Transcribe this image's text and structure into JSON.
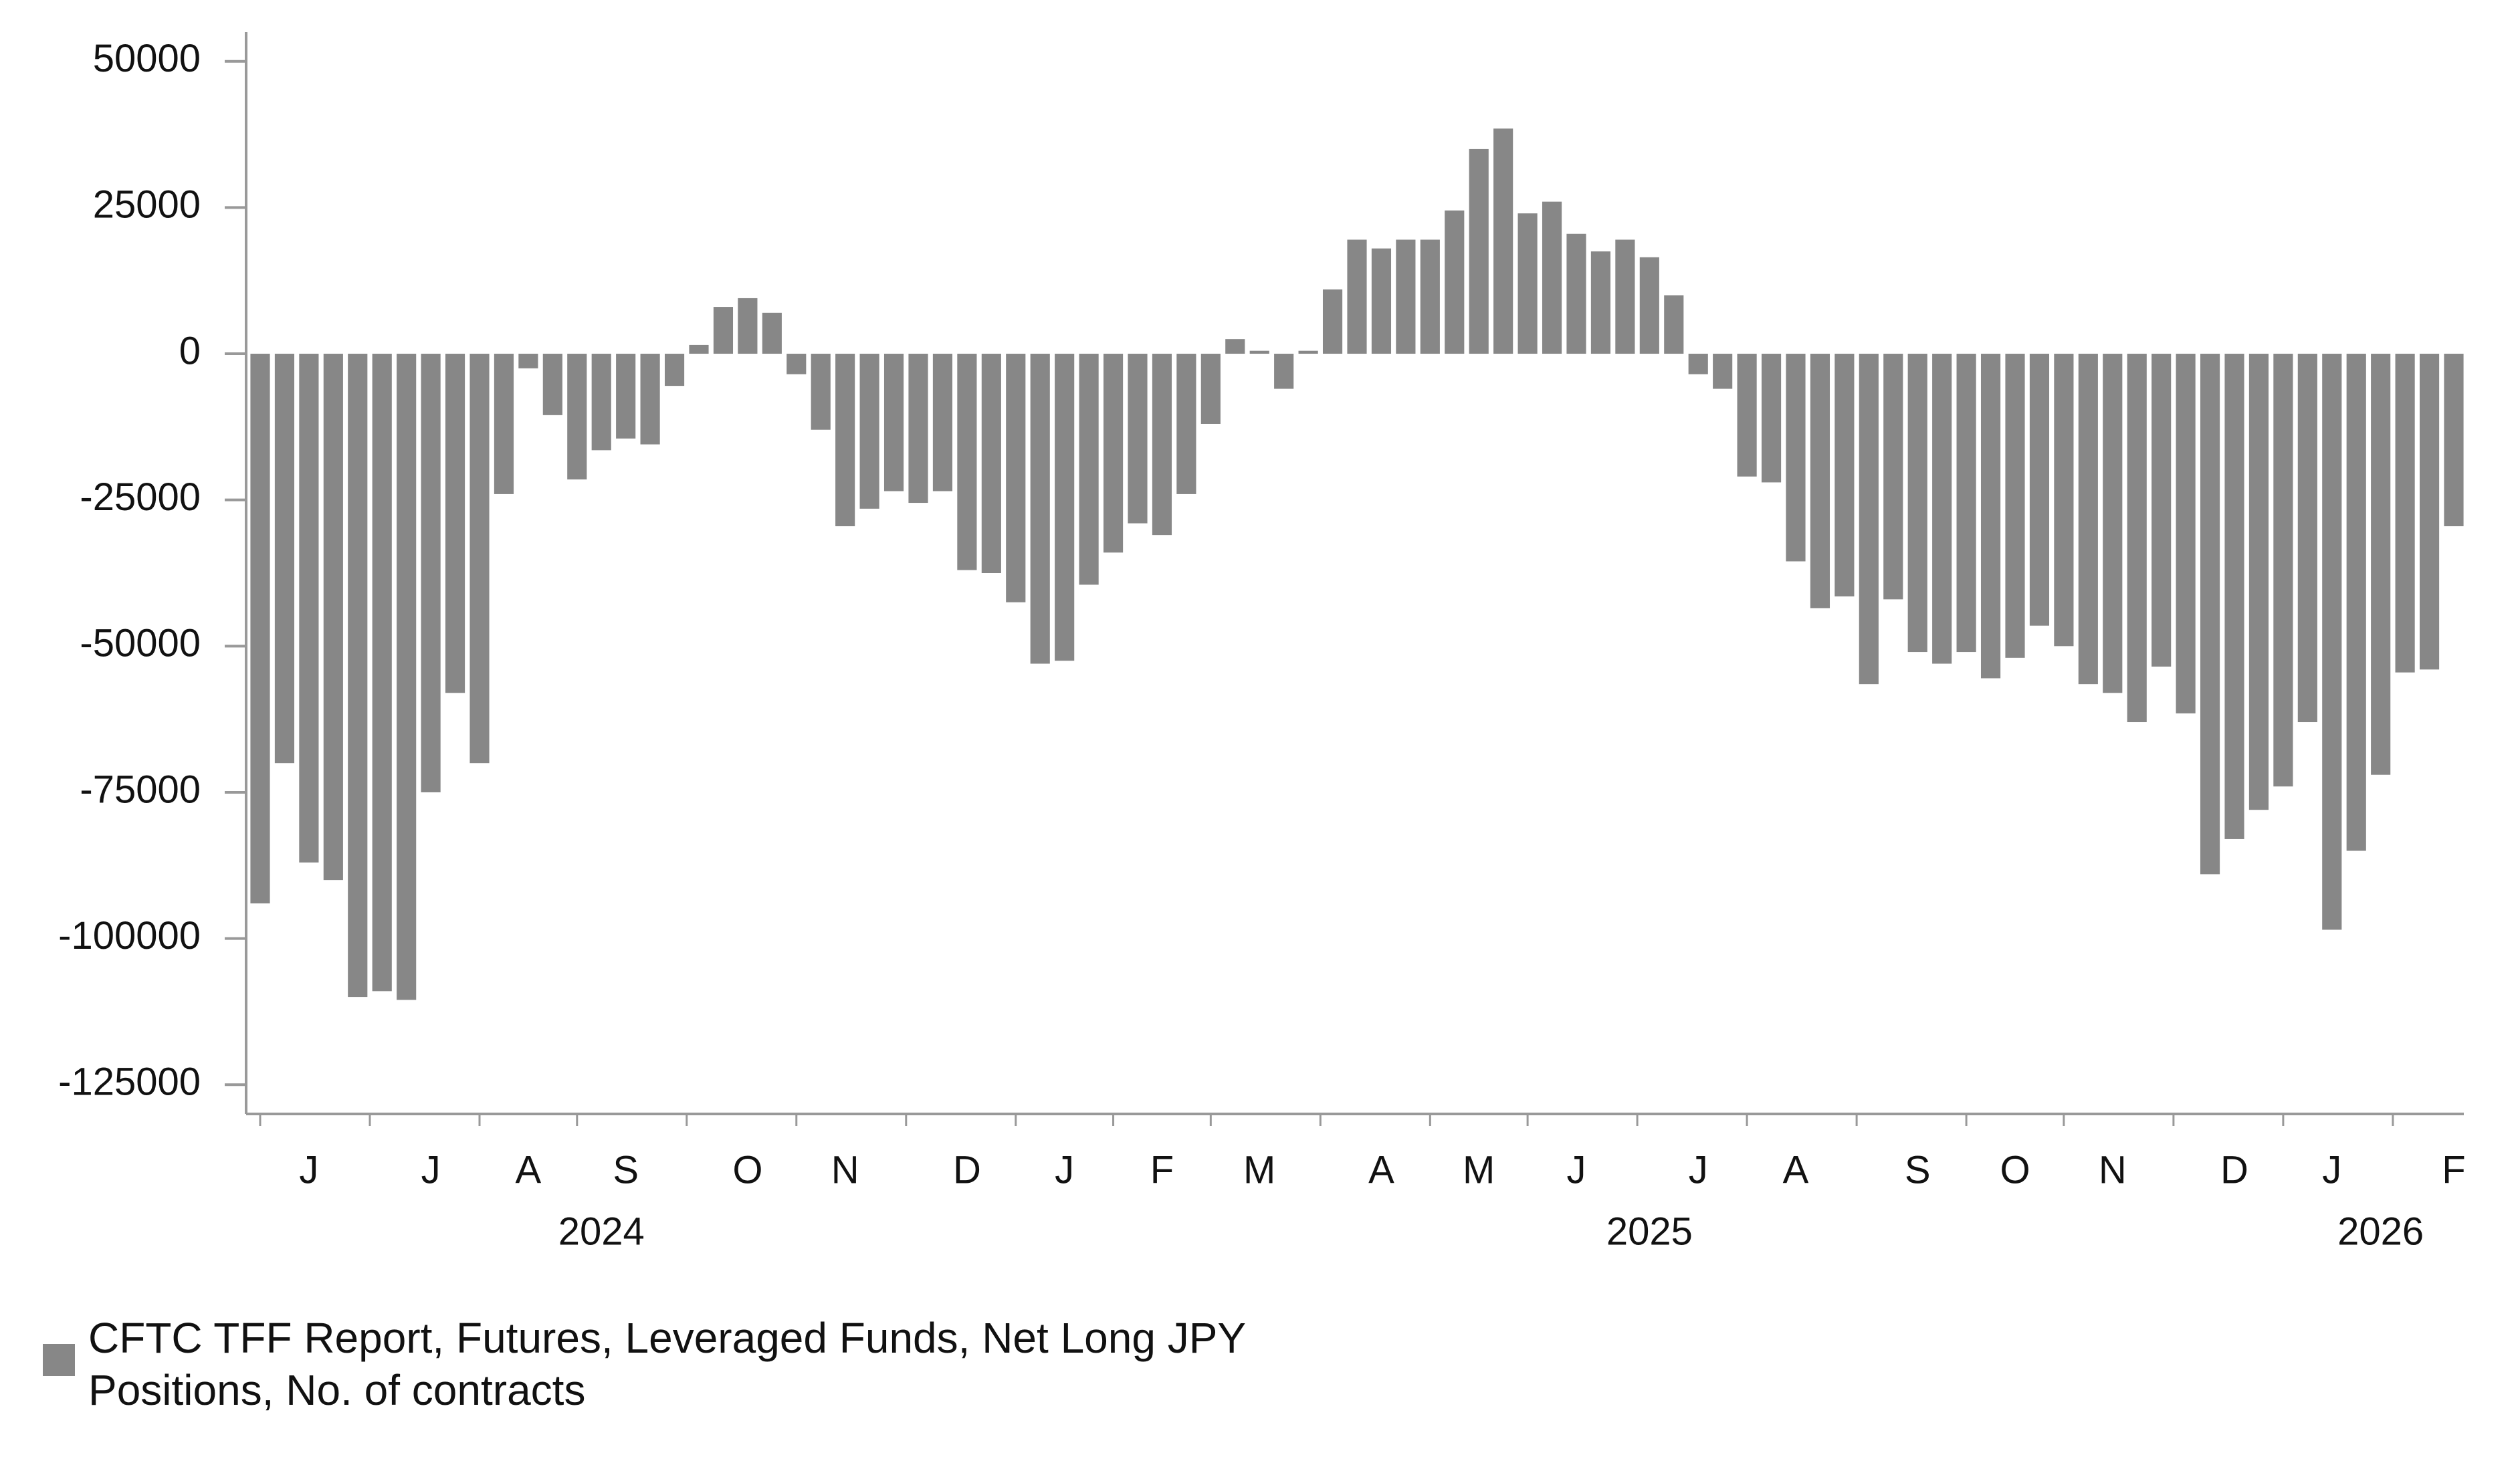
{
  "chart_data": {
    "type": "bar",
    "color": "#878787",
    "categories": [
      null,
      null,
      "J",
      null,
      null,
      null,
      null,
      "J",
      null,
      null,
      null,
      "A",
      null,
      null,
      null,
      "S",
      null,
      null,
      null,
      null,
      "O",
      null,
      null,
      null,
      "N",
      null,
      null,
      null,
      null,
      "D",
      null,
      null,
      null,
      "J",
      null,
      null,
      null,
      "F",
      null,
      null,
      null,
      "M",
      null,
      null,
      null,
      null,
      "A",
      null,
      null,
      null,
      "M",
      null,
      null,
      null,
      "J",
      null,
      null,
      null,
      null,
      "J",
      null,
      null,
      null,
      "A",
      null,
      null,
      null,
      null,
      "S",
      null,
      null,
      null,
      "O",
      null,
      null,
      null,
      "N",
      null,
      null,
      null,
      null,
      "D",
      null,
      null,
      null,
      "J",
      null,
      null,
      null,
      null,
      "F"
    ],
    "year_categories": [
      null,
      null,
      null,
      null,
      null,
      null,
      null,
      null,
      null,
      null,
      null,
      null,
      null,
      null,
      "2024",
      null,
      null,
      null,
      null,
      null,
      null,
      null,
      null,
      null,
      null,
      null,
      null,
      null,
      null,
      null,
      null,
      null,
      null,
      null,
      null,
      null,
      null,
      null,
      null,
      null,
      null,
      null,
      null,
      null,
      null,
      null,
      null,
      null,
      null,
      null,
      null,
      null,
      null,
      null,
      null,
      null,
      null,
      "2025",
      null,
      null,
      null,
      null,
      null,
      null,
      null,
      null,
      null,
      null,
      null,
      null,
      null,
      null,
      null,
      null,
      null,
      null,
      null,
      null,
      null,
      null,
      null,
      null,
      null,
      null,
      null,
      null,
      null,
      "2026",
      null,
      null,
      null
    ],
    "series": [
      {
        "name": "CFTC TFF Report, Futures, Leveraged Funds, Net Long JPY Positions, No. of contracts",
        "color": "#878787",
        "values": [
          -94000,
          -70000,
          -87000,
          -90000,
          -110000,
          -109000,
          -110500,
          -75000,
          -58000,
          -70000,
          -24000,
          -2500,
          -10500,
          -21500,
          -16500,
          -14500,
          -15500,
          -5500,
          1500,
          8000,
          9500,
          7000,
          -3500,
          -13000,
          -29500,
          -26500,
          -23500,
          -25500,
          -23500,
          -37000,
          -37500,
          -42500,
          -53000,
          -52500,
          -39500,
          -34000,
          -29000,
          -31000,
          -24000,
          -12000,
          2500,
          500,
          -6000,
          500,
          11000,
          19500,
          18000,
          19500,
          19500,
          24500,
          35000,
          38500,
          24000,
          26000,
          20500,
          17500,
          19500,
          16500,
          10000,
          -3500,
          -6000,
          -21000,
          -22000,
          -35500,
          -43500,
          -41500,
          -56500,
          -42000,
          -51000,
          -53000,
          -51000,
          -55500,
          -52000,
          -46500,
          -50000,
          -56500,
          -58000,
          -63000,
          -53500,
          -61500,
          -89000,
          -83000,
          -78000,
          -74000,
          -63000,
          -98500,
          -85000,
          -72000,
          -54500,
          -54000,
          -29500
        ]
      }
    ],
    "ylim": [
      -130000,
      55000
    ],
    "yticks": [
      -125000,
      -100000,
      -75000,
      -50000,
      -25000,
      0,
      25000,
      50000
    ]
  }
}
